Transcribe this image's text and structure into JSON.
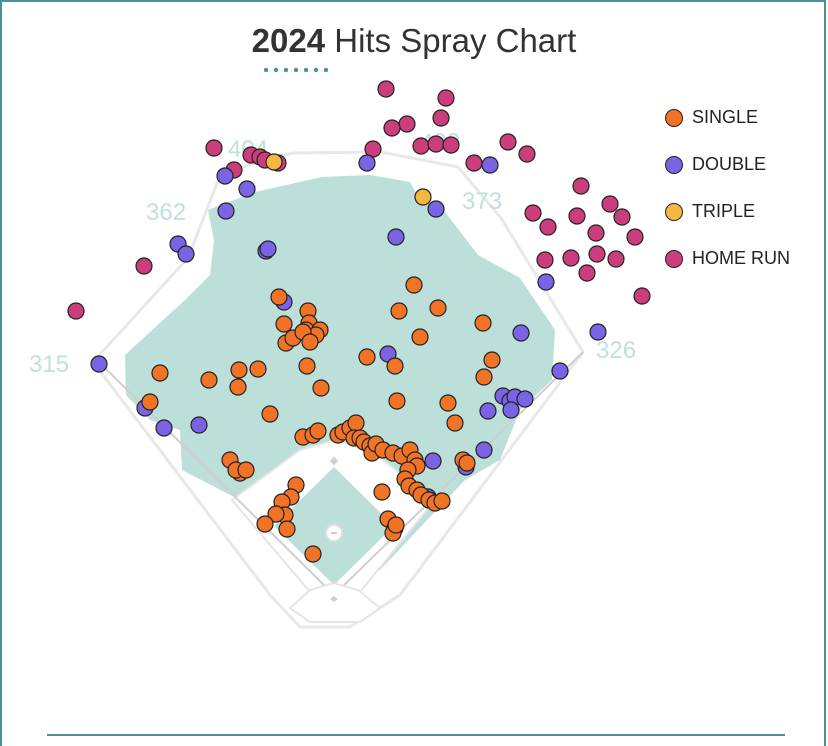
{
  "chart_data": {
    "type": "scatter",
    "title_year": "2024",
    "title_rest": "Hits Spray Chart",
    "fence_distances": {
      "left_line": "315",
      "left_center": "362",
      "center_left": "404",
      "center_right": "400",
      "right_center": "373",
      "right_line": "326"
    },
    "legend": [
      {
        "key": "single",
        "label": "SINGLE",
        "color": "#f07326"
      },
      {
        "key": "double",
        "label": "DOUBLE",
        "color": "#7b63e6"
      },
      {
        "key": "triple",
        "label": "TRIPLE",
        "color": "#f7b640"
      },
      {
        "key": "home_run",
        "label": "HOME RUN",
        "color": "#cc3e7b"
      }
    ],
    "hits": {
      "single": [
        [
          279,
          297
        ],
        [
          308,
          311
        ],
        [
          309,
          323
        ],
        [
          306,
          330
        ],
        [
          320,
          330
        ],
        [
          316,
          335
        ],
        [
          284,
          324
        ],
        [
          286,
          343
        ],
        [
          293,
          338
        ],
        [
          303,
          332
        ],
        [
          310,
          342
        ],
        [
          307,
          366
        ],
        [
          321,
          388
        ],
        [
          239,
          370
        ],
        [
          258,
          369
        ],
        [
          209,
          380
        ],
        [
          238,
          387
        ],
        [
          160,
          373
        ],
        [
          150,
          402
        ],
        [
          270,
          414
        ],
        [
          230,
          460
        ],
        [
          240,
          473
        ],
        [
          236,
          470
        ],
        [
          246,
          470
        ],
        [
          296,
          485
        ],
        [
          291,
          497
        ],
        [
          282,
          502
        ],
        [
          285,
          515
        ],
        [
          276,
          514
        ],
        [
          265,
          524
        ],
        [
          287,
          529
        ],
        [
          313,
          554
        ],
        [
          414,
          285
        ],
        [
          399,
          311
        ],
        [
          438,
          308
        ],
        [
          420,
          337
        ],
        [
          367,
          357
        ],
        [
          395,
          366
        ],
        [
          483,
          323
        ],
        [
          492,
          360
        ],
        [
          484,
          377
        ],
        [
          397,
          401
        ],
        [
          448,
          403
        ],
        [
          455,
          423
        ],
        [
          303,
          437
        ],
        [
          313,
          435
        ],
        [
          318,
          431
        ],
        [
          338,
          435
        ],
        [
          343,
          432
        ],
        [
          350,
          428
        ],
        [
          356,
          423
        ],
        [
          354,
          438
        ],
        [
          360,
          438
        ],
        [
          364,
          442
        ],
        [
          370,
          446
        ],
        [
          372,
          453
        ],
        [
          376,
          444
        ],
        [
          383,
          450
        ],
        [
          393,
          453
        ],
        [
          402,
          456
        ],
        [
          410,
          450
        ],
        [
          415,
          460
        ],
        [
          417,
          466
        ],
        [
          408,
          470
        ],
        [
          405,
          479
        ],
        [
          409,
          486
        ],
        [
          417,
          490
        ],
        [
          421,
          495
        ],
        [
          429,
          500
        ],
        [
          435,
          503
        ],
        [
          442,
          501
        ],
        [
          382,
          492
        ],
        [
          388,
          519
        ],
        [
          395,
          528
        ],
        [
          393,
          533
        ],
        [
          396,
          525
        ],
        [
          463,
          460
        ],
        [
          467,
          463
        ]
      ],
      "double": [
        [
          284,
          302
        ],
        [
          266,
          251
        ],
        [
          268,
          249
        ],
        [
          226,
          211
        ],
        [
          247,
          189
        ],
        [
          225,
          176
        ],
        [
          178,
          244
        ],
        [
          186,
          254
        ],
        [
          99,
          364
        ],
        [
          145,
          408
        ],
        [
          164,
          428
        ],
        [
          199,
          425
        ],
        [
          396,
          237
        ],
        [
          436,
          209
        ],
        [
          367,
          163
        ],
        [
          490,
          165
        ],
        [
          521,
          333
        ],
        [
          598,
          332
        ],
        [
          560,
          371
        ],
        [
          546,
          282
        ],
        [
          503,
          396
        ],
        [
          510,
          401
        ],
        [
          515,
          397
        ],
        [
          525,
          399
        ],
        [
          511,
          410
        ],
        [
          488,
          411
        ],
        [
          484,
          450
        ],
        [
          433,
          461
        ],
        [
          466,
          467
        ],
        [
          388,
          354
        ],
        [
          428,
          497
        ]
      ],
      "triple": [
        [
          274,
          162
        ],
        [
          423,
          197
        ]
      ],
      "home_run": [
        [
          386,
          89
        ],
        [
          446,
          98
        ],
        [
          441,
          118
        ],
        [
          407,
          124
        ],
        [
          392,
          128
        ],
        [
          373,
          149
        ],
        [
          421,
          146
        ],
        [
          436,
          144
        ],
        [
          451,
          145
        ],
        [
          474,
          163
        ],
        [
          508,
          142
        ],
        [
          527,
          154
        ],
        [
          214,
          148
        ],
        [
          234,
          170
        ],
        [
          251,
          155
        ],
        [
          260,
          157
        ],
        [
          265,
          160
        ],
        [
          278,
          163
        ],
        [
          581,
          186
        ],
        [
          610,
          204
        ],
        [
          622,
          217
        ],
        [
          577,
          216
        ],
        [
          533,
          213
        ],
        [
          548,
          227
        ],
        [
          596,
          233
        ],
        [
          635,
          237
        ],
        [
          545,
          260
        ],
        [
          571,
          258
        ],
        [
          597,
          254
        ],
        [
          616,
          259
        ],
        [
          587,
          273
        ],
        [
          642,
          296
        ],
        [
          144,
          266
        ],
        [
          76,
          311
        ]
      ]
    }
  }
}
